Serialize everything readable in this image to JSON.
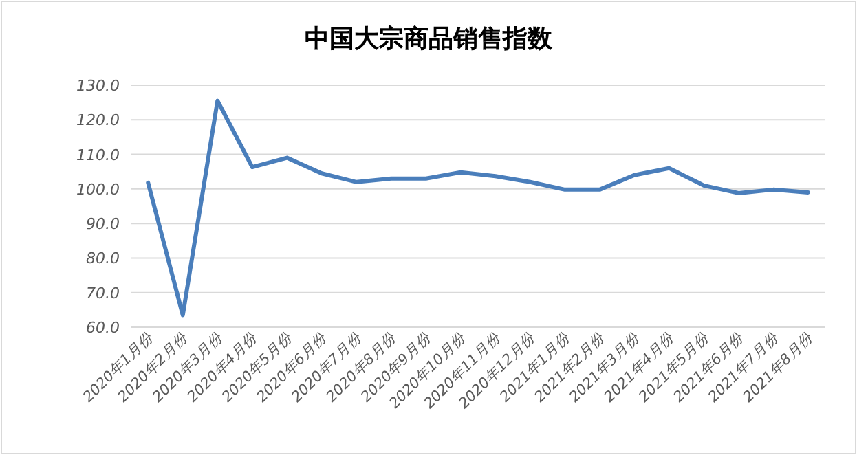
{
  "chart_data": {
    "type": "line",
    "title": "中国大宗商品销售指数",
    "categories": [
      "2020年1月份",
      "2020年2月份",
      "2020年3月份",
      "2020年4月份",
      "2020年5月份",
      "2020年6月份",
      "2020年7月份",
      "2020年8月份",
      "2020年9月份",
      "2020年10月份",
      "2020年11月份",
      "2020年12月份",
      "2021年1月份",
      "2021年2月份",
      "2021年3月份",
      "2021年4月份",
      "2021年5月份",
      "2021年6月份",
      "2021年7月份",
      "2021年8月份"
    ],
    "values": [
      101.8,
      63.5,
      125.5,
      106.3,
      109.0,
      104.5,
      102.0,
      103.0,
      103.0,
      104.8,
      103.7,
      102.0,
      99.8,
      99.8,
      104.0,
      106.0,
      101.0,
      98.8,
      99.8,
      99.0
    ],
    "color": "#4a7ebb",
    "ylim": [
      60,
      130
    ],
    "yticks": [
      {
        "value": 60,
        "label": "60.0"
      },
      {
        "value": 70,
        "label": "70.0"
      },
      {
        "value": 80,
        "label": "80.0"
      },
      {
        "value": 90,
        "label": "90.0"
      },
      {
        "value": 100,
        "label": "100.0"
      },
      {
        "value": 110,
        "label": "110.0"
      },
      {
        "value": 120,
        "label": "120.0"
      },
      {
        "value": 130,
        "label": "130.0"
      }
    ],
    "grid": "y",
    "marker": "none",
    "line_style": "solid"
  }
}
